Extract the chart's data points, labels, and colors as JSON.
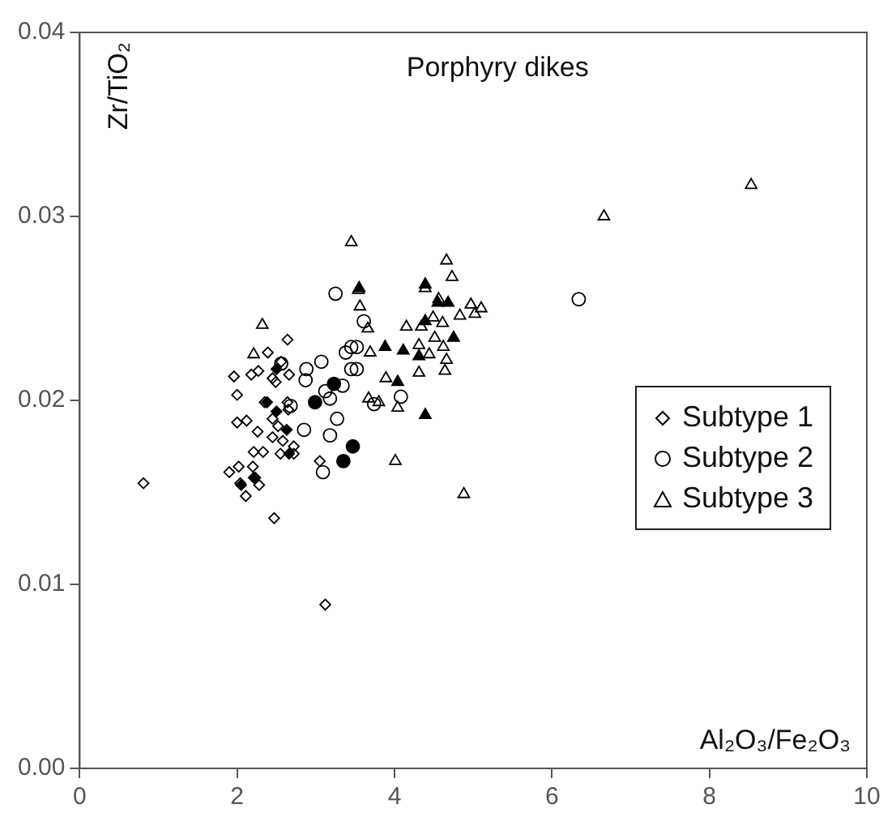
{
  "chart_data": {
    "type": "scatter",
    "title": "Porphyry dikes",
    "xlabel": "Al₂O₃/Fe₂O₃",
    "ylabel": "Zr/TiO₂",
    "xlim": [
      0,
      10
    ],
    "xticks": [
      0,
      2,
      4,
      6,
      8,
      10
    ],
    "ylim": [
      0,
      0.04
    ],
    "yticks": [
      {
        "value": 0,
        "label": "0.00"
      },
      {
        "value": 0.01,
        "label": "0.01"
      },
      {
        "value": 0.02,
        "label": "0.02"
      },
      {
        "value": 0.03,
        "label": "0.03"
      },
      {
        "value": 0.04,
        "label": "0.04"
      }
    ],
    "grid": false,
    "legend": "right",
    "series": [
      {
        "name": "Subtype 1",
        "color": "#000000",
        "marker": "diamond",
        "x": [
          0.81,
          1.96,
          2.0,
          2.0,
          2.12,
          2.26,
          1.9,
          2.02,
          2.04,
          2.11,
          2.21,
          2.23,
          2.28,
          2.2,
          2.33,
          2.18,
          2.27,
          2.39,
          2.35,
          2.45,
          2.49,
          2.45,
          2.45,
          2.52,
          2.58,
          2.47,
          2.55,
          2.64,
          2.66,
          2.64,
          2.65,
          2.72,
          2.72,
          3.12,
          3.05,
          2.56
        ],
        "values": [
          0.0155,
          0.0213,
          0.0203,
          0.0188,
          0.0189,
          0.0183,
          0.0161,
          0.0164,
          0.0155,
          0.0148,
          0.0172,
          0.0158,
          0.0154,
          0.0164,
          0.0172,
          0.0214,
          0.0216,
          0.0226,
          0.0199,
          0.0212,
          0.021,
          0.019,
          0.018,
          0.0186,
          0.0178,
          0.0136,
          0.0171,
          0.0233,
          0.0214,
          0.0199,
          0.0195,
          0.0171,
          0.0175,
          0.0089,
          0.0167,
          0.0221
        ]
      },
      {
        "name": "Subtype 2",
        "color": "#000000",
        "marker": "circle",
        "x": [
          3.25,
          2.88,
          2.87,
          2.68,
          2.56,
          3.07,
          3.12,
          3.18,
          3.34,
          3.27,
          3.18,
          3.09,
          2.85,
          3.38,
          3.45,
          3.52,
          3.45,
          3.52,
          3.61,
          3.74,
          4.08,
          6.34
        ],
        "values": [
          0.0258,
          0.0217,
          0.0211,
          0.0197,
          0.022,
          0.0221,
          0.0205,
          0.0201,
          0.0208,
          0.019,
          0.0181,
          0.0161,
          0.0184,
          0.0226,
          0.0229,
          0.0229,
          0.0217,
          0.0217,
          0.0243,
          0.0198,
          0.0202,
          0.0255
        ]
      },
      {
        "name": "Subtype 3",
        "color": "#000000",
        "marker": "triangle",
        "x": [
          2.32,
          2.21,
          3.45,
          3.54,
          3.56,
          3.66,
          3.69,
          3.67,
          3.8,
          3.89,
          4.04,
          4.01,
          4.15,
          4.31,
          4.31,
          4.34,
          4.39,
          4.49,
          4.51,
          4.44,
          4.56,
          4.61,
          4.62,
          4.66,
          4.64,
          4.66,
          4.73,
          4.83,
          4.97,
          5.02,
          5.1,
          4.88,
          6.66,
          8.53
        ],
        "values": [
          0.0241,
          0.0225,
          0.0286,
          0.026,
          0.0251,
          0.0239,
          0.0226,
          0.0201,
          0.0199,
          0.0212,
          0.0196,
          0.0167,
          0.024,
          0.023,
          0.0215,
          0.024,
          0.0261,
          0.0245,
          0.0234,
          0.0225,
          0.0255,
          0.0242,
          0.0229,
          0.0222,
          0.0216,
          0.0276,
          0.0267,
          0.0246,
          0.0252,
          0.0247,
          0.025,
          0.0149,
          0.03,
          0.0317
        ]
      },
      {
        "color": "#000000",
        "marker": "diamond",
        "x": [
          2.05,
          2.21,
          2.5,
          2.38,
          2.5,
          2.63,
          2.66
        ],
        "values": [
          0.0154,
          0.0158,
          0.0194,
          0.0199,
          0.0217,
          0.0184,
          0.0171
        ]
      },
      {
        "color": "#000000",
        "marker": "circle",
        "x": [
          2.99,
          3.23,
          3.47,
          3.35
        ],
        "values": [
          0.0199,
          0.0209,
          0.0175,
          0.0167
        ]
      },
      {
        "color": "#000000",
        "marker": "triangle",
        "x": [
          3.55,
          3.88,
          4.11,
          4.04,
          4.31,
          4.39,
          4.39,
          4.39,
          4.55,
          4.68,
          4.75
        ],
        "values": [
          0.0261,
          0.0229,
          0.0227,
          0.021,
          0.0224,
          0.0263,
          0.0243,
          0.0192,
          0.0253,
          0.0253,
          0.0234
        ]
      }
    ]
  }
}
